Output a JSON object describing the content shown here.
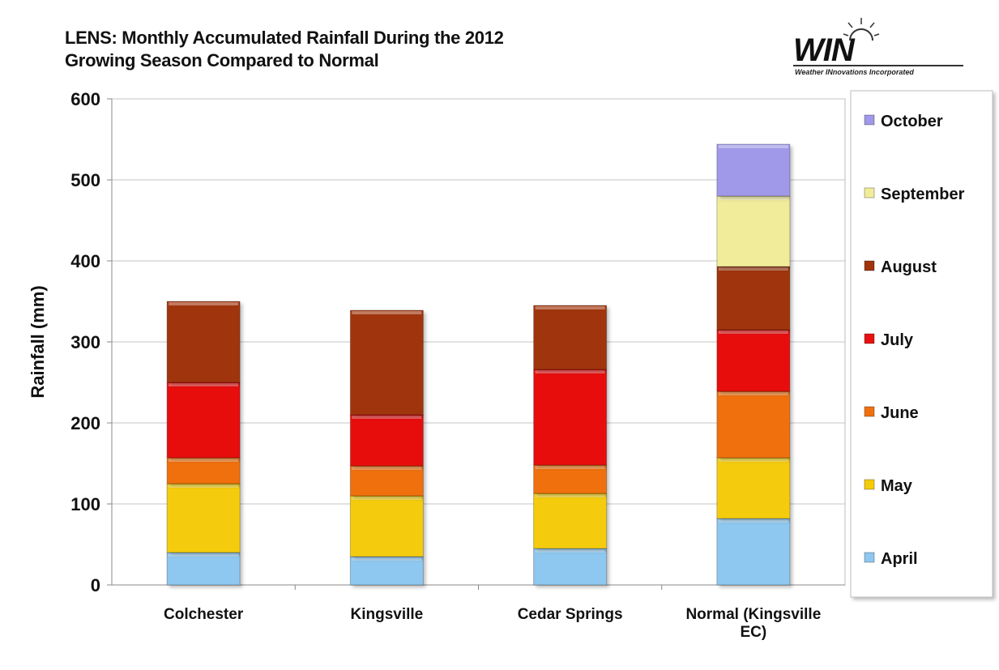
{
  "title_lines": [
    "LENS: Monthly Accumulated Rainfall During the 2012",
    "Growing Season Compared to Normal"
  ],
  "logo": {
    "wordmark": "WIN",
    "subtitle": "Weather INnovations Incorporated"
  },
  "chart_data": {
    "type": "bar",
    "stacked": true,
    "title": "LENS: Monthly Accumulated Rainfall During the 2012 Growing Season Compared to Normal",
    "xlabel": "",
    "ylabel": "Rainfall (mm)",
    "ylim": [
      0,
      600
    ],
    "yticks": [
      0,
      100,
      200,
      300,
      400,
      500,
      600
    ],
    "grid": true,
    "legend_position": "right",
    "categories": [
      "Colchester",
      "Kingsville",
      "Cedar Springs",
      "Normal (Kingsville EC)"
    ],
    "series": [
      {
        "name": "April",
        "color": "#8EC8F0",
        "values": [
          40,
          35,
          45,
          82
        ]
      },
      {
        "name": "May",
        "color": "#F5CC0A",
        "values": [
          85,
          75,
          68,
          75
        ]
      },
      {
        "name": "June",
        "color": "#F07010",
        "values": [
          32,
          37,
          35,
          82
        ]
      },
      {
        "name": "July",
        "color": "#E81010",
        "values": [
          93,
          63,
          118,
          76
        ]
      },
      {
        "name": "August",
        "color": "#A0340C",
        "values": [
          100,
          129,
          79,
          78
        ]
      },
      {
        "name": "September",
        "color": "#F0EC9A",
        "values": [
          0,
          0,
          0,
          87
        ]
      },
      {
        "name": "October",
        "color": "#A098E8",
        "values": [
          0,
          0,
          0,
          64
        ]
      }
    ]
  }
}
